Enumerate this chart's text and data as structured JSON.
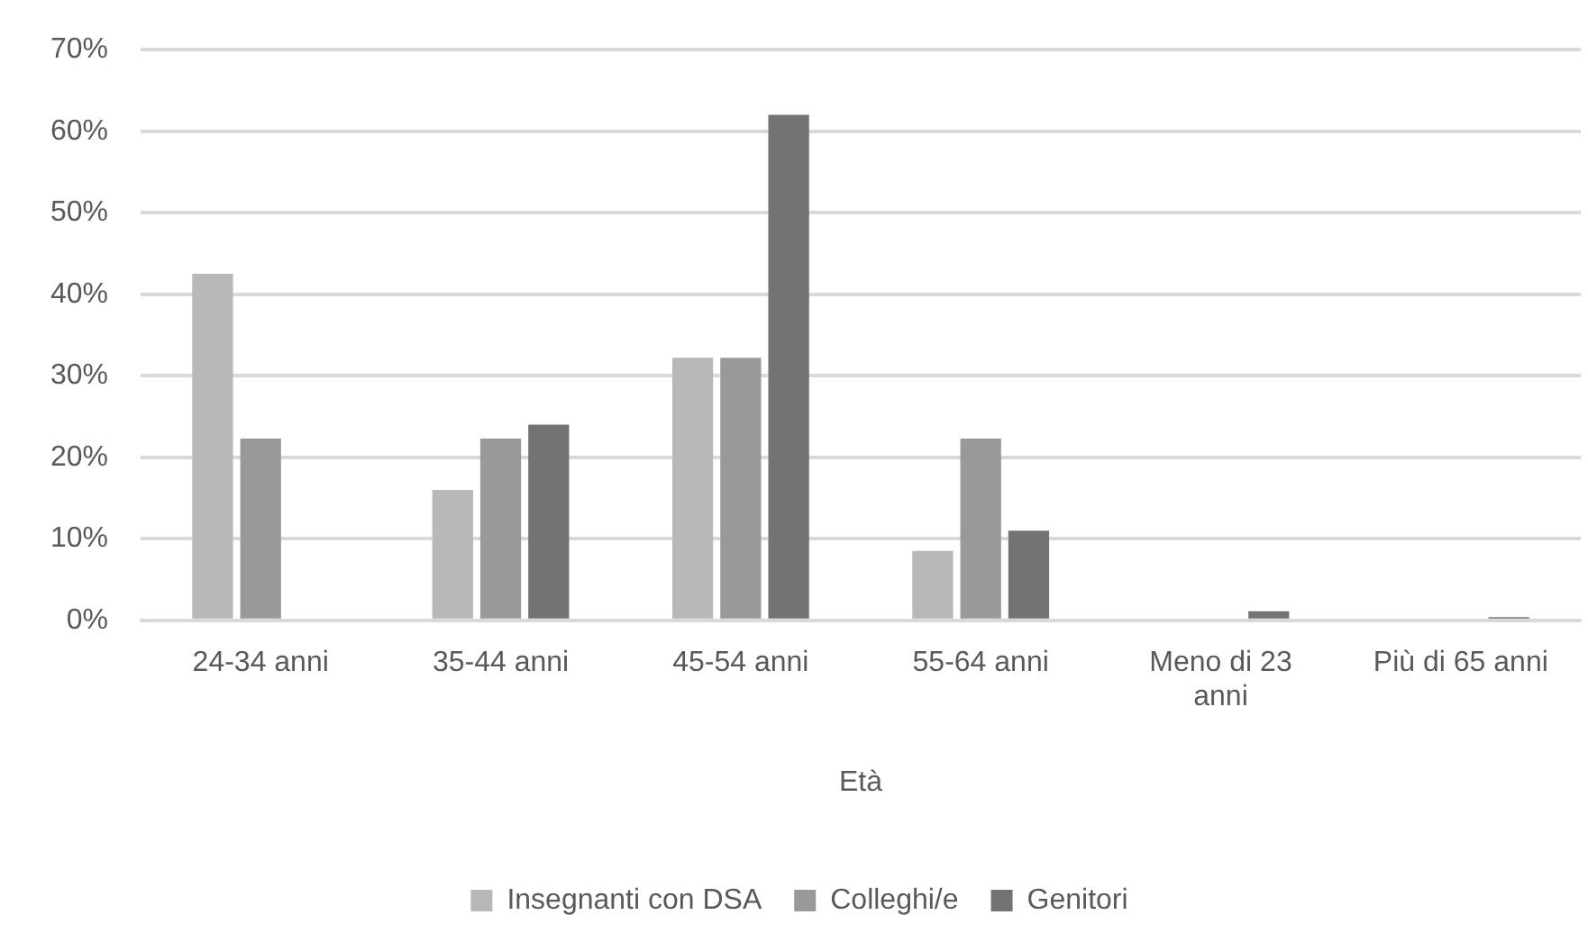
{
  "chart_data": {
    "type": "bar",
    "xlabel": "Età",
    "categories": [
      "24-34 anni",
      "35-44 anni",
      "45-54 anni",
      "55-64 anni",
      "Meno di 23 anni",
      "Più di 65 anni"
    ],
    "series": [
      {
        "name": "Insegnanti con DSA",
        "color": "#b8b8b8",
        "values": [
          42.5,
          16,
          32.2,
          8.5,
          0,
          0
        ]
      },
      {
        "name": "Colleghi/e",
        "color": "#999999",
        "values": [
          22.3,
          22.3,
          32.2,
          22.3,
          0,
          0
        ]
      },
      {
        "name": "Genitori",
        "color": "#737373",
        "values": [
          0,
          24,
          62,
          11,
          1.1,
          0.4
        ]
      }
    ],
    "ylim": [
      0,
      70
    ],
    "yticks": [
      {
        "value": 0,
        "label": "0%"
      },
      {
        "value": 10,
        "label": "10%"
      },
      {
        "value": 20,
        "label": "20%"
      },
      {
        "value": 30,
        "label": "30%"
      },
      {
        "value": 40,
        "label": "40%"
      },
      {
        "value": 50,
        "label": "50%"
      },
      {
        "value": 60,
        "label": "60%"
      },
      {
        "value": 70,
        "label": "70%"
      }
    ],
    "grid": "y",
    "legend": "bottom"
  }
}
